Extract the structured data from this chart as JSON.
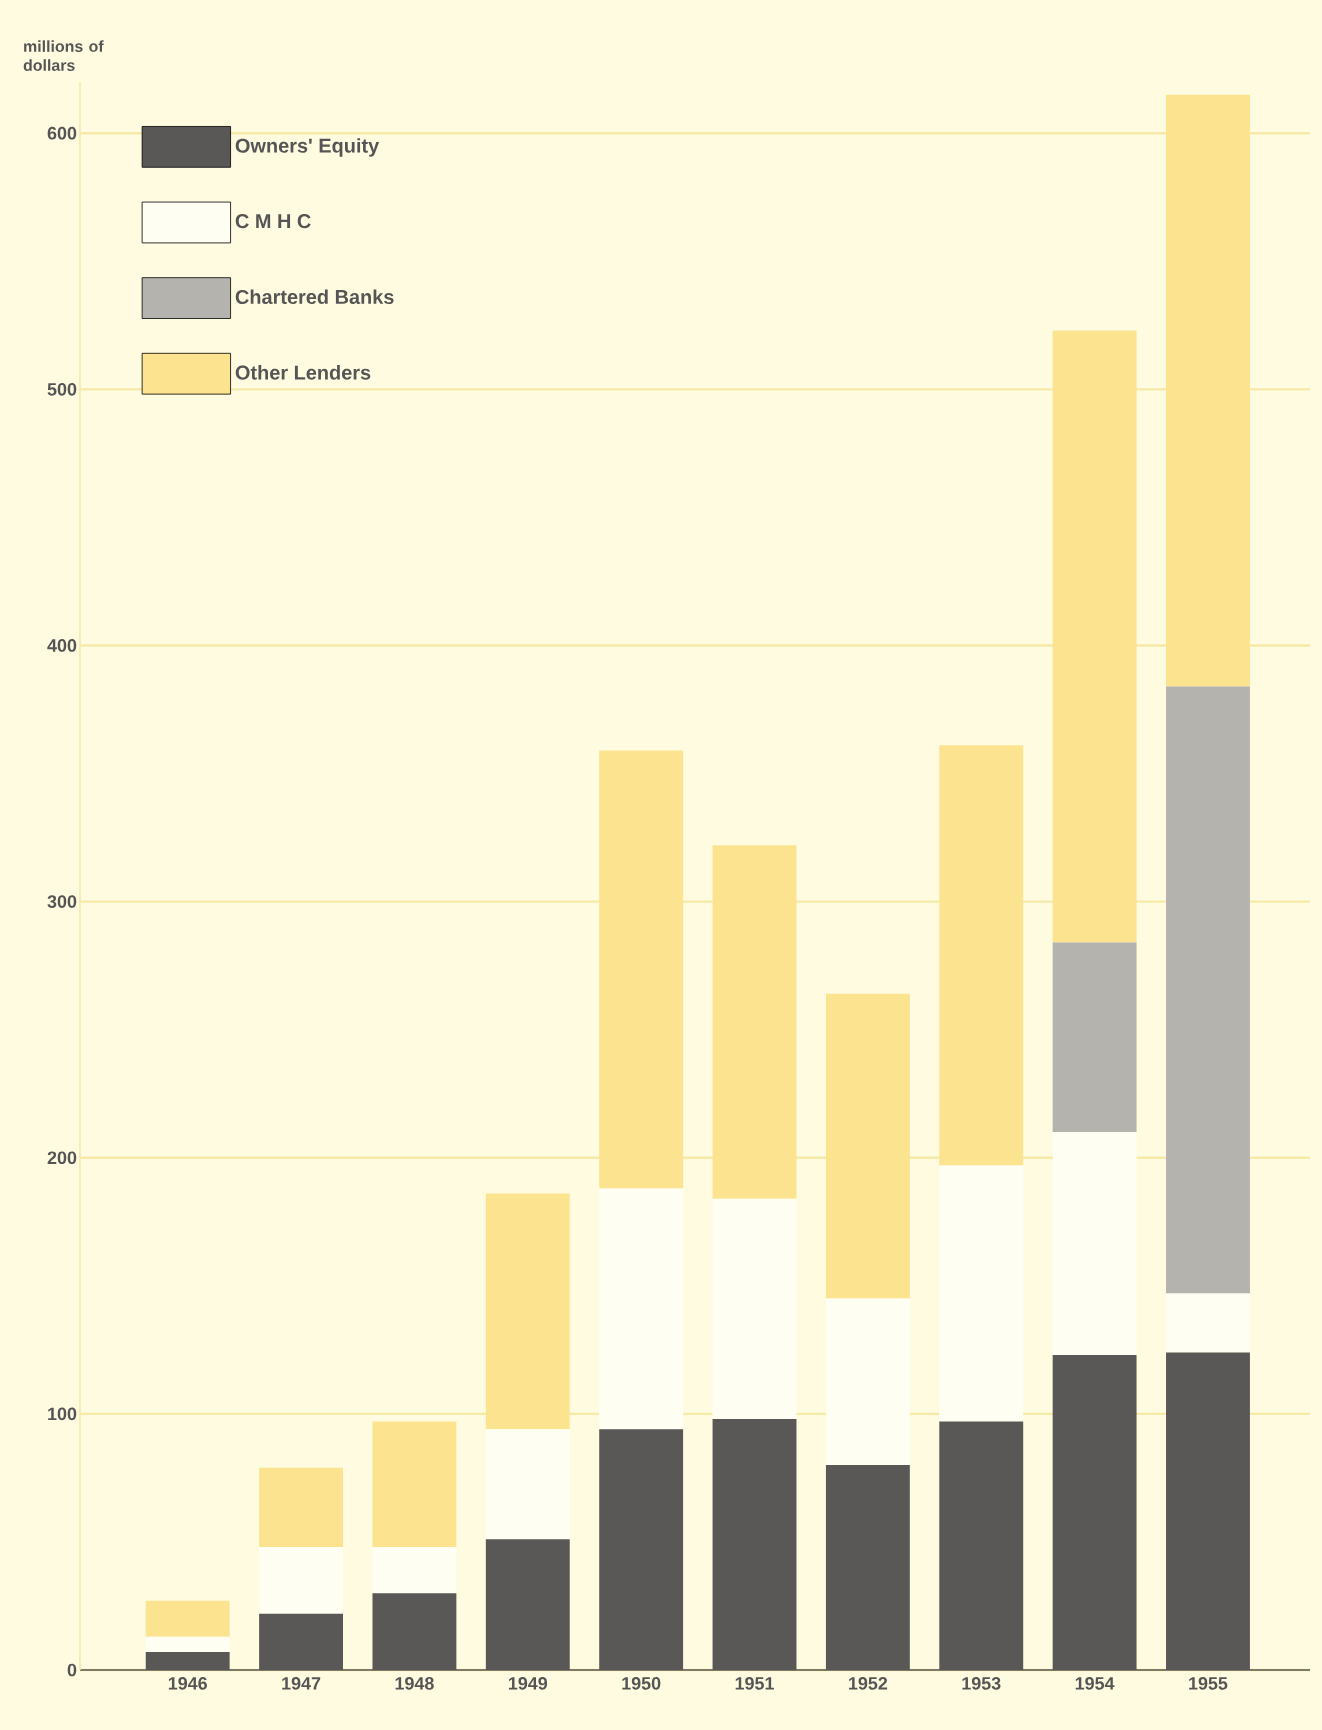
{
  "chart_data": {
    "type": "bar",
    "stacked": true,
    "ylabel": "millions of dollars",
    "categories": [
      "1946",
      "1947",
      "1948",
      "1949",
      "1950",
      "1951",
      "1952",
      "1953",
      "1954",
      "1955"
    ],
    "series": [
      {
        "name": "Owners' Equity",
        "color": "#5a5757",
        "values": [
          7,
          22,
          30,
          51,
          94,
          98,
          80,
          97,
          123,
          124
        ]
      },
      {
        "name": "C M H C",
        "color": "#fffef2",
        "values": [
          6,
          26,
          18,
          43,
          94,
          86,
          65,
          100,
          87,
          23
        ]
      },
      {
        "name": "Chartered Banks",
        "color": "#b5b3ad",
        "values": [
          0,
          0,
          0,
          0,
          0,
          0,
          0,
          0,
          74,
          237
        ]
      },
      {
        "name": "Other Lenders",
        "color": "#fce38f",
        "values": [
          14,
          31,
          49,
          92,
          171,
          138,
          119,
          164,
          239,
          231
        ]
      }
    ],
    "ylim": [
      0,
      620
    ],
    "yticks": [
      0,
      100,
      200,
      300,
      400,
      500,
      600
    ],
    "grid": "y",
    "legend": "top left"
  }
}
